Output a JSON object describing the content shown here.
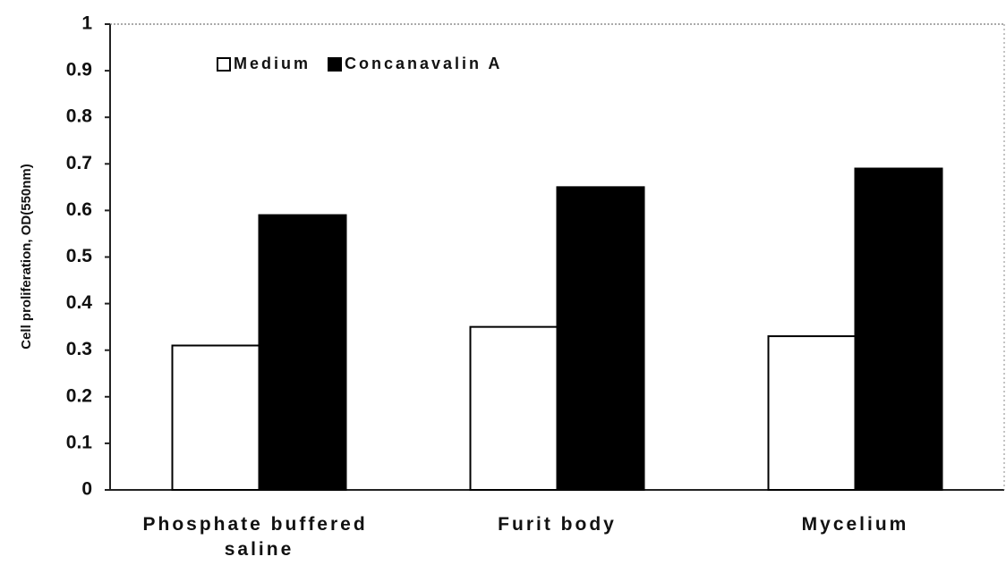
{
  "chart_data": {
    "type": "bar",
    "ylabel": "Cell proliferation, OD(550nm)",
    "categories": [
      "Phosphate buffered saline",
      "Furit body",
      "Mycelium"
    ],
    "series": [
      {
        "name": "Medium",
        "color": "#ffffff",
        "values": [
          0.31,
          0.35,
          0.33
        ]
      },
      {
        "name": "Concanavalin A",
        "color": "#000000",
        "values": [
          0.59,
          0.65,
          0.69
        ]
      }
    ],
    "ylim": [
      0,
      1
    ],
    "yticks": [
      0,
      0.1,
      0.2,
      0.3,
      0.4,
      0.5,
      0.6,
      0.7,
      0.8,
      0.9,
      1
    ],
    "legend": "top-left"
  }
}
